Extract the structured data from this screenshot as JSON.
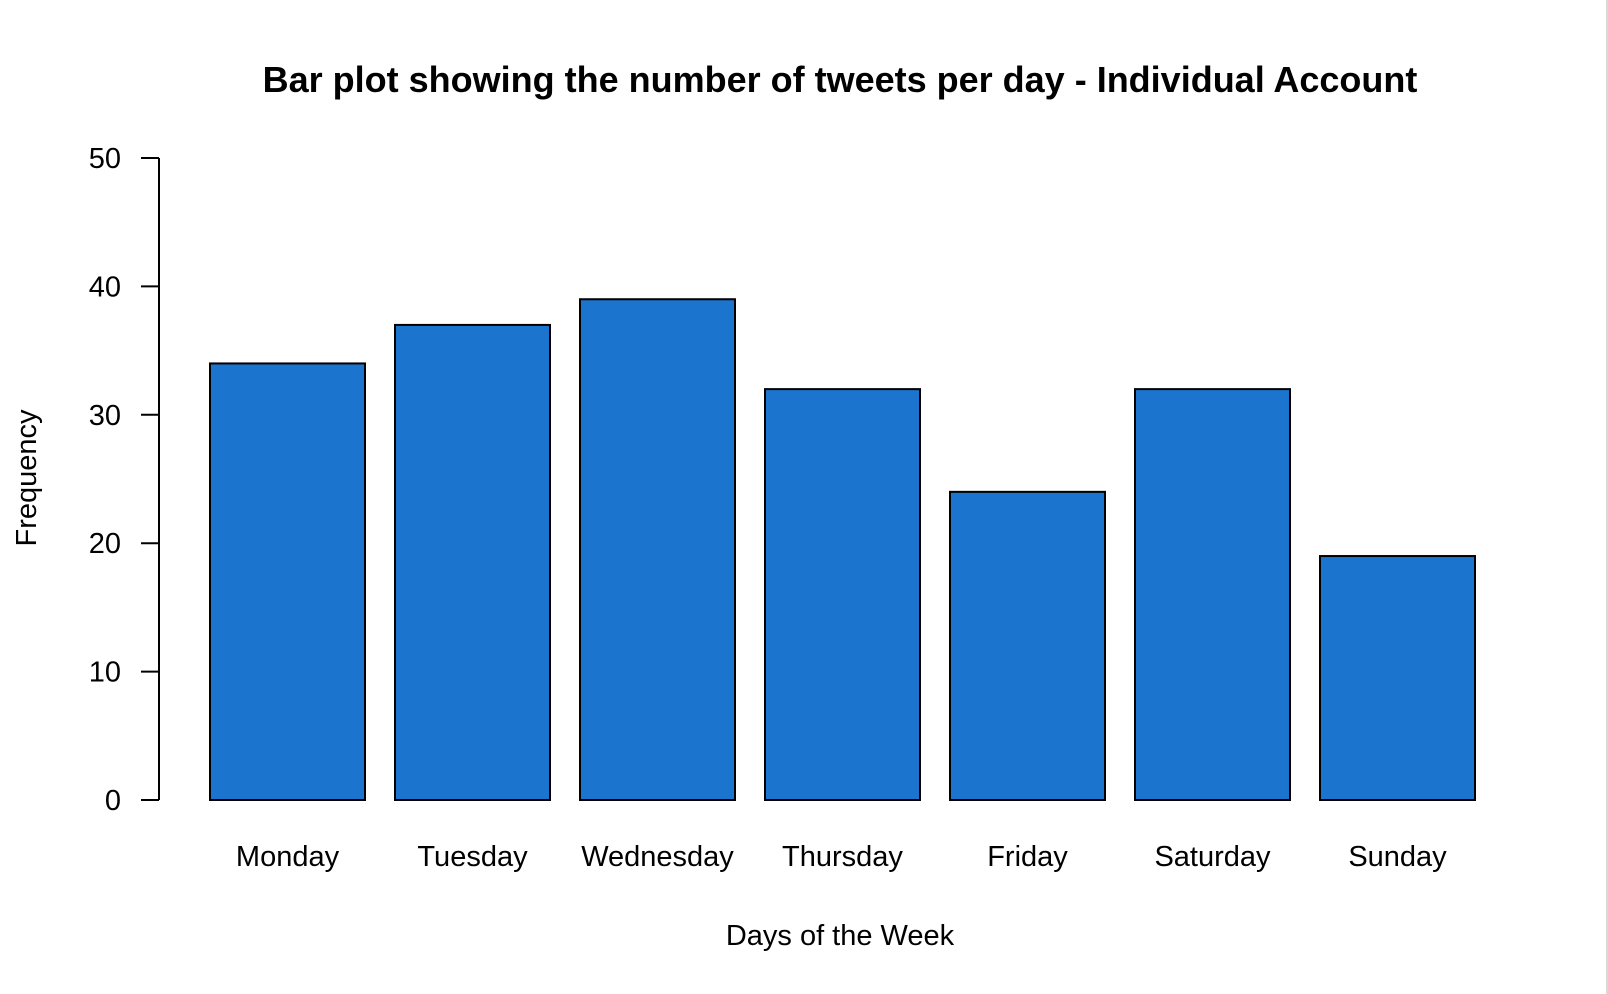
{
  "chart_data": {
    "type": "bar",
    "title": "Bar plot showing the number of tweets per day - Individual Account",
    "xlabel": "Days of the Week",
    "ylabel": "Frequency",
    "categories": [
      "Monday",
      "Tuesday",
      "Wednesday",
      "Thursday",
      "Friday",
      "Saturday",
      "Sunday"
    ],
    "values": [
      34,
      37,
      39,
      32,
      24,
      32,
      19
    ],
    "yticks": [
      0,
      10,
      20,
      30,
      40,
      50
    ],
    "ylim": [
      0,
      50
    ],
    "grid": false,
    "bar_color": "#1b75cf",
    "bar_edge_color": "#000000"
  }
}
